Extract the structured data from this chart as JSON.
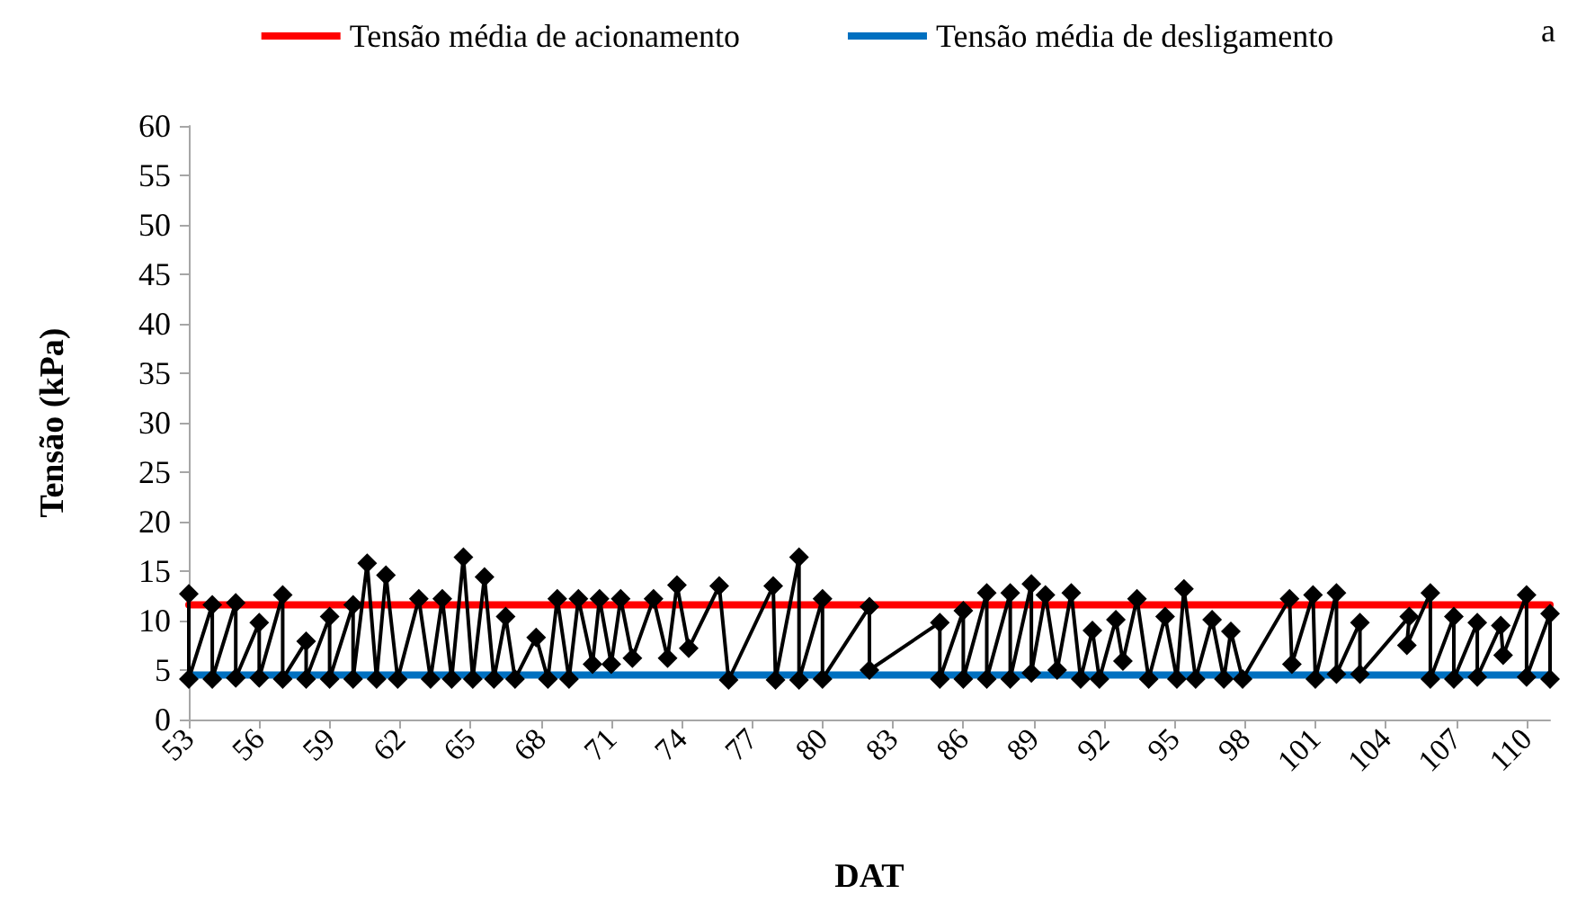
{
  "chart_data": {
    "type": "line",
    "xlabel": "DAT",
    "ylabel": "Tensão (kPa)",
    "annotations": [
      "a"
    ],
    "xlim": [
      53,
      111
    ],
    "xticks": [
      53,
      56,
      59,
      62,
      65,
      68,
      71,
      74,
      77,
      80,
      83,
      86,
      89,
      92,
      95,
      98,
      101,
      104,
      107,
      110
    ],
    "ylim": [
      0,
      60
    ],
    "yticks": [
      0,
      5,
      10,
      15,
      20,
      25,
      30,
      35,
      40,
      45,
      50,
      55,
      60
    ],
    "grid": false,
    "legend": "top",
    "line_style": "solid",
    "series": [
      {
        "name": "Tensão média de acionamento",
        "color": "#ff0000",
        "marker": "none",
        "x": [
          53,
          111
        ],
        "values": [
          11.6,
          11.6
        ]
      },
      {
        "name": "Tensão média de desligamento",
        "color": "#0070c0",
        "marker": "none",
        "x": [
          53,
          111
        ],
        "values": [
          4.5,
          4.5
        ]
      },
      {
        "color": "#000000",
        "marker": "diamond",
        "x": [
          53,
          53,
          54,
          54,
          55,
          55,
          56,
          56,
          57,
          57,
          58,
          58,
          59,
          59,
          60,
          60,
          60.6,
          61,
          61.4,
          61.9,
          62.8,
          63.3,
          63.8,
          64.2,
          64.7,
          65.1,
          65.6,
          66,
          66.5,
          66.9,
          67.8,
          68.3,
          68.7,
          69.2,
          69.6,
          70.2,
          70.5,
          71,
          71.4,
          71.9,
          72.8,
          73.4,
          73.8,
          74.3,
          75.6,
          76,
          77.9,
          78,
          79,
          79,
          80,
          80,
          82,
          82,
          85,
          85,
          86,
          86,
          87,
          87,
          88,
          88,
          88.9,
          88.9,
          89.5,
          90,
          90.6,
          91,
          91.5,
          91.8,
          92.5,
          92.8,
          93.4,
          93.9,
          94.6,
          95.1,
          95.4,
          95.9,
          96.6,
          97.1,
          97.4,
          97.9,
          99.9,
          100,
          100.9,
          101,
          101.9,
          101.9,
          102.9,
          102.9,
          105,
          104.9,
          105.9,
          105.9,
          106.9,
          106.9,
          107.9,
          107.9,
          108.9,
          109,
          110,
          110,
          111,
          111
        ],
        "values": [
          12.7,
          4.1,
          11.6,
          4.1,
          11.8,
          4.2,
          9.8,
          4.2,
          12.6,
          4.1,
          7.9,
          4.1,
          10.4,
          4.1,
          11.6,
          4.1,
          15.8,
          4.1,
          14.6,
          4.1,
          12.2,
          4.1,
          12.2,
          4.1,
          16.4,
          4.1,
          14.4,
          4.1,
          10.4,
          4.1,
          8.3,
          4.1,
          12.2,
          4.1,
          12.2,
          5.6,
          12.2,
          5.6,
          12.2,
          6.2,
          12.2,
          6.2,
          13.6,
          7.2,
          13.5,
          4,
          13.5,
          4,
          16.4,
          4,
          12.2,
          4.1,
          11.4,
          5,
          9.8,
          4.1,
          11,
          4.1,
          12.8,
          4.1,
          12.8,
          4.1,
          13.7,
          4.7,
          12.6,
          5,
          12.8,
          4.1,
          9,
          4.1,
          10.1,
          5.9,
          12.2,
          4.1,
          10.4,
          4.1,
          13.2,
          4.1,
          10.1,
          4.1,
          8.9,
          4.1,
          12.2,
          5.6,
          12.6,
          4.1,
          12.8,
          4.6,
          9.8,
          4.6,
          10.4,
          7.5,
          12.8,
          4.1,
          10.4,
          4.1,
          9.8,
          4.3,
          9.5,
          6.5,
          12.6,
          4.3,
          10.7,
          4.1
        ]
      }
    ]
  }
}
